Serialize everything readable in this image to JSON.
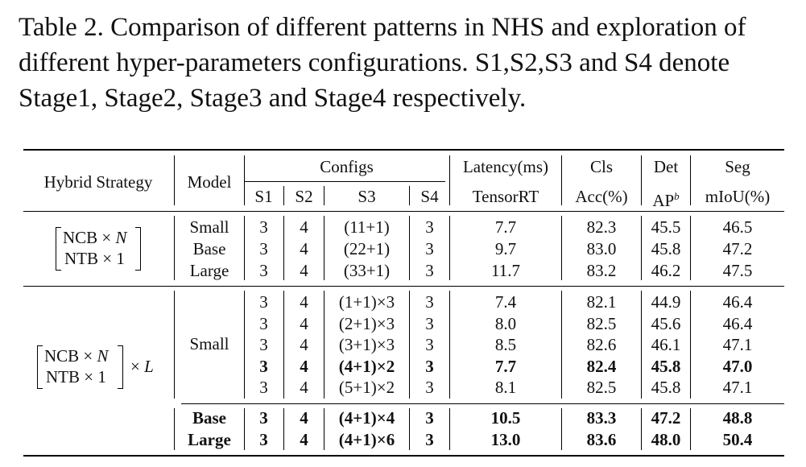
{
  "caption": "Table 2. Comparison of different patterns in NHS and exploration of different hyper-parameters configurations. S1,S2,S3 and S4 denote Stage1, Stage2, Stage3 and Stage4 respectively.",
  "header": {
    "hybrid_strategy": "Hybrid Strategy",
    "model": "Model",
    "configs": "Configs",
    "latency": "Latency(ms)",
    "cls": "Cls",
    "det": "Det",
    "seg": "Seg",
    "s1": "S1",
    "s2": "S2",
    "s3": "S3",
    "s4": "S4",
    "tensorrt": "TensorRT",
    "acc": "Acc(%)",
    "ap": "AP",
    "ap_sup": "b",
    "miou": "mIoU(%)"
  },
  "strategy1": {
    "line1": "NCB × ",
    "line1_var": "N",
    "line2": "NTB × 1"
  },
  "strategy2": {
    "line1": "NCB × ",
    "line1_var": "N",
    "line2": "NTB × 1",
    "suffix": "× ",
    "suffix_var": "L"
  },
  "group1": {
    "models": [
      "Small",
      "Base",
      "Large"
    ],
    "rows": [
      [
        "3",
        "4",
        "(11+1)",
        "3",
        "7.7",
        "82.3",
        "45.5",
        "46.5"
      ],
      [
        "3",
        "4",
        "(22+1)",
        "3",
        "9.7",
        "83.0",
        "45.8",
        "47.2"
      ],
      [
        "3",
        "4",
        "(33+1)",
        "3",
        "11.7",
        "83.2",
        "46.2",
        "47.5"
      ]
    ]
  },
  "group2": {
    "model": "Small",
    "rows": [
      [
        "3",
        "4",
        "(1+1)×3",
        "3",
        "7.4",
        "82.1",
        "44.9",
        "46.4"
      ],
      [
        "3",
        "4",
        "(2+1)×3",
        "3",
        "8.0",
        "82.5",
        "45.6",
        "46.4"
      ],
      [
        "3",
        "4",
        "(3+1)×3",
        "3",
        "8.5",
        "82.6",
        "46.1",
        "47.1"
      ],
      [
        "3",
        "4",
        "(4+1)×2",
        "3",
        "7.7",
        "82.4",
        "45.8",
        "47.0"
      ],
      [
        "3",
        "4",
        "(5+1)×2",
        "3",
        "8.1",
        "82.5",
        "45.8",
        "47.1"
      ]
    ],
    "bold_row": 3
  },
  "group3": {
    "models": [
      "Base",
      "Large"
    ],
    "rows": [
      [
        "3",
        "4",
        "(4+1)×4",
        "3",
        "10.5",
        "83.3",
        "47.2",
        "48.8"
      ],
      [
        "3",
        "4",
        "(4+1)×6",
        "3",
        "13.0",
        "83.6",
        "48.0",
        "50.4"
      ]
    ]
  }
}
